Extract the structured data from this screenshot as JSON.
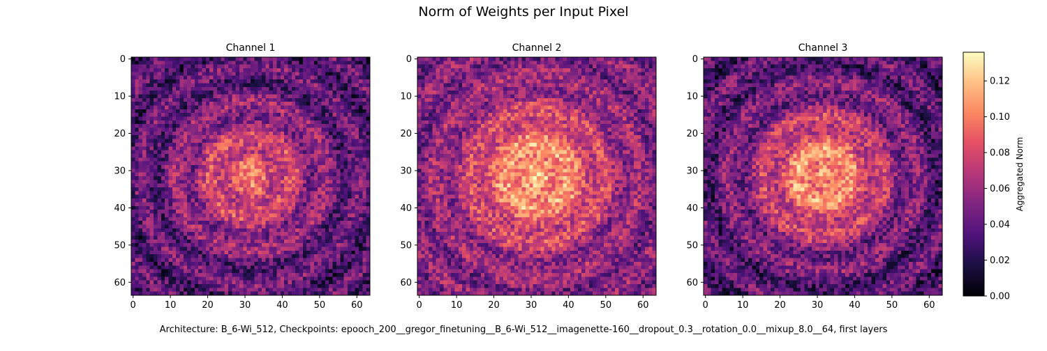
{
  "figure": {
    "title": "Norm of Weights per Input Pixel",
    "caption": "Architecture: B_6-Wi_512, Checkpoints: epooch_200__gregor_finetuning__B_6-Wi_512__imagenette-160__dropout_0.3__rotation_0.0__mixup_8.0__64, first layers"
  },
  "chart_data": {
    "type": "heatmap",
    "colormap": "magma",
    "grid_size": 64,
    "xlim": [
      0,
      63
    ],
    "ylim": [
      63,
      0
    ],
    "x_ticks": [
      0,
      10,
      20,
      30,
      40,
      50,
      60
    ],
    "y_ticks": [
      0,
      10,
      20,
      30,
      40,
      50,
      60
    ],
    "colorbar": {
      "label": "Aggregated Norm",
      "range": [
        0.0,
        0.136
      ],
      "ticks": [
        "0.00",
        "0.02",
        "0.04",
        "0.06",
        "0.08",
        "0.10",
        "0.12"
      ]
    },
    "panels": [
      {
        "title": "Channel 1",
        "center_value": 0.09,
        "edge_value": 0.035,
        "ring_strength": 0.012
      },
      {
        "title": "Channel 2",
        "center_value": 0.115,
        "edge_value": 0.05,
        "ring_strength": 0.01
      },
      {
        "title": "Channel 3",
        "center_value": 0.11,
        "edge_value": 0.035,
        "ring_strength": 0.012
      }
    ]
  }
}
